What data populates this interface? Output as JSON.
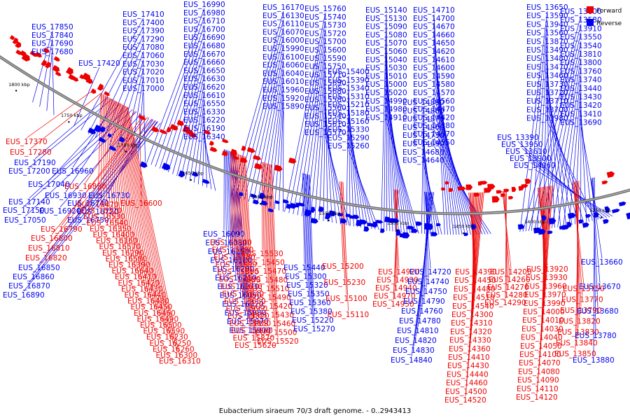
{
  "caption": "Eubacterium siraeum 70/3 draft genome. - 0..2943413",
  "legend": {
    "forward_label": "Forward",
    "reverse_label": "Reverse",
    "forward_color": "#ee0000",
    "reverse_color": "#0000ee"
  },
  "ticks": [
    "1800 kbp",
    "1750 kbp",
    "1700 kbp",
    "1650 kbp",
    "1600 kbp",
    "1550 kbp",
    "1500 kbp",
    "1450 kbp",
    "1400 kbp",
    "1350 kbp"
  ],
  "reverse_labels_upper": [
    "EUS_17850",
    "EUS_17840",
    "EUS_17690",
    "EUS_17680",
    "EUS_17420",
    "EUS_17410",
    "EUS_17400",
    "EUS_17390",
    "EUS_17290",
    "EUS_17080",
    "EUS_17060",
    "EUS_17030",
    "EUS_17020",
    "EUS_17010",
    "EUS_17000",
    "EUS_16990",
    "EUS_16980",
    "EUS_16710",
    "EUS_16700",
    "EUS_16690",
    "EUS_16680",
    "EUS_16670",
    "EUS_16660",
    "EUS_16650",
    "EUS_16630",
    "EUS_16620",
    "EUS_16610",
    "EUS_16550",
    "EUS_16330",
    "EUS_16220",
    "EUS_16190",
    "EUS_16340",
    "EUS_16170",
    "EUS_16130",
    "EUS_16110",
    "EUS_16070",
    "EUS_16000",
    "EUS_15990",
    "EUS_16100",
    "EUS_16060",
    "EUS_16040",
    "EUS_16010",
    "EUS_15960",
    "EUS_15920",
    "EUS_15890",
    "EUS_15760",
    "EUS_15740",
    "EUS_15730",
    "EUS_15720",
    "EUS_15700",
    "EUS_15600",
    "EUS_15590",
    "EUS_15750",
    "EUS_15710",
    "EUS_15690",
    "EUS_15680",
    "EUS_15580",
    "EUS_15560",
    "EUS_15540",
    "EUS_15610",
    "EUS_15570",
    "EUS_15400",
    "EUS_15390",
    "EUS_15340",
    "EUS_15310",
    "EUS_15210",
    "EUS_15180",
    "EUS_15160",
    "EUS_15330",
    "EUS_15290",
    "EUS_15260",
    "EUS_15140",
    "EUS_15130",
    "EUS_15090",
    "EUS_15080",
    "EUS_15070",
    "EUS_15060",
    "EUS_15040",
    "EUS_15030",
    "EUS_15010",
    "EUS_15000",
    "EUS_15020",
    "EUS_14990",
    "EUS_14980",
    "EUS_14910",
    "EUS_14890",
    "EUS_14880",
    "EUS_14870",
    "EUS_14800",
    "EUS_14730",
    "EUS_14690",
    "EUS_14680",
    "EUS_14640",
    "EUS_14710",
    "EUS_14700",
    "EUS_14670",
    "EUS_14660",
    "EUS_14650",
    "EUS_14620",
    "EUS_14610",
    "EUS_14600",
    "EUS_14590",
    "EUS_14580",
    "EUS_14570",
    "EUS_14560",
    "EUS_14470",
    "EUS_14420",
    "EUS_14380",
    "EUS_14370",
    "EUS_14350",
    "EUS_13650",
    "EUS_13600",
    "EUS_13590",
    "EUS_13580",
    "EUS_13940",
    "EUS_13910",
    "EUS_13560",
    "EUS_13550",
    "EUS_13870",
    "EUS_13540",
    "EUS_13490",
    "EUS_13810",
    "EUS_13480",
    "EUS_13800",
    "EUS_13470",
    "EUS_13760",
    "EUS_13460",
    "EUS_13740",
    "EUS_13730",
    "EUS_13440",
    "EUS_13720",
    "EUS_13430",
    "EUS_13710",
    "EUS_13420",
    "EUS_13700",
    "EUS_13410",
    "EUS_13980",
    "EUS_13690",
    "EUS_13390",
    "EUS_13950",
    "EUS_13610",
    "EUS_13900",
    "EUS_14060"
  ],
  "forward_labels_left": [
    "EUS_17370",
    "EUS_17280"
  ],
  "reverse_labels_left": [
    "EUS_17190",
    "EUS_17200",
    "EUS_16960",
    "EUS_17040",
    "EUS_16930",
    "EUS_17140",
    "EUS_17150",
    "EUS_17050",
    "EUS_16920",
    "EUS_16740",
    "EUS_16730",
    "EUS_16720",
    "EUS_16750"
  ],
  "forward_labels_left_mid": [
    "EUS_16830",
    "EUS_16600",
    "EUS_16790",
    "EUS_16800",
    "EUS_16810",
    "EUS_16820"
  ],
  "reverse_labels_left_lower": [
    "EUS_16850",
    "EUS_16860",
    "EUS_16870",
    "EUS_16890"
  ],
  "lower_labels": [
    {
      "t": "EUS_16470",
      "c": "f"
    },
    {
      "t": "EUS_16320",
      "c": "f"
    },
    {
      "t": "EUS_16530",
      "c": "f"
    },
    {
      "t": "EUS_16540",
      "c": "f"
    },
    {
      "t": "EUS_16350",
      "c": "f"
    },
    {
      "t": "EUS_16400",
      "c": "f"
    },
    {
      "t": "EUS_16160",
      "c": "f"
    },
    {
      "t": "EUS_16570",
      "c": "f"
    },
    {
      "t": "EUS_16290",
      "c": "f"
    },
    {
      "t": "EUS_16580",
      "c": "f"
    },
    {
      "t": "EUS_16390",
      "c": "f"
    },
    {
      "t": "EUS_16640",
      "c": "f"
    },
    {
      "t": "EUS_16410",
      "c": "f"
    },
    {
      "t": "EUS_16420",
      "c": "f"
    },
    {
      "t": "EUS_16430",
      "c": "f"
    },
    {
      "t": "EUS_16440",
      "c": "f"
    },
    {
      "t": "EUS_16480",
      "c": "f"
    },
    {
      "t": "EUS_16450",
      "c": "f"
    },
    {
      "t": "EUS_16460",
      "c": "f"
    },
    {
      "t": "EUS_16490",
      "c": "f"
    },
    {
      "t": "EUS_16500",
      "c": "f"
    },
    {
      "t": "EUS_16590",
      "c": "f"
    },
    {
      "t": "EUS_16230",
      "c": "f"
    },
    {
      "t": "EUS_16250",
      "c": "f"
    },
    {
      "t": "EUS_16260",
      "c": "f"
    },
    {
      "t": "EUS_16300",
      "c": "f"
    },
    {
      "t": "EUS_16310",
      "c": "f"
    },
    {
      "t": "EUS_16090",
      "c": "r"
    },
    {
      "t": "EUS_16080",
      "c": "r"
    },
    {
      "t": "EUS_16150",
      "c": "r"
    },
    {
      "t": "EUS_16180",
      "c": "r"
    },
    {
      "t": "EUS_16200",
      "c": "r"
    },
    {
      "t": "EUS_16210",
      "c": "r"
    },
    {
      "t": "EUS_16270",
      "c": "r"
    },
    {
      "t": "EUS_16050",
      "c": "r"
    },
    {
      "t": "EUS_16020",
      "c": "r"
    },
    {
      "t": "EUS_15980",
      "c": "r"
    },
    {
      "t": "EUS_15970",
      "c": "r"
    },
    {
      "t": "EUS_15900",
      "c": "r"
    },
    {
      "t": "EUS_15940",
      "c": "f"
    },
    {
      "t": "EUS_15790",
      "c": "f"
    },
    {
      "t": "EUS_15780",
      "c": "f"
    },
    {
      "t": "EUS_15800",
      "c": "f"
    },
    {
      "t": "EUS_15810",
      "c": "f"
    },
    {
      "t": "EUS_15880",
      "c": "f"
    },
    {
      "t": "EUS_15630",
      "c": "f"
    },
    {
      "t": "EUS_15640",
      "c": "f"
    },
    {
      "t": "EUS_15650",
      "c": "f"
    },
    {
      "t": "EUS_15660",
      "c": "f"
    },
    {
      "t": "EUS_15820",
      "c": "f"
    },
    {
      "t": "EUS_15850",
      "c": "f"
    },
    {
      "t": "EUS_15860",
      "c": "f"
    },
    {
      "t": "EUS_15870",
      "c": "f"
    },
    {
      "t": "EUS_15620",
      "c": "f"
    },
    {
      "t": "EUS_15530",
      "c": "f"
    },
    {
      "t": "EUS_15450",
      "c": "f"
    },
    {
      "t": "EUS_15470",
      "c": "f"
    },
    {
      "t": "EUS_15480",
      "c": "f"
    },
    {
      "t": "EUS_15510",
      "c": "f"
    },
    {
      "t": "EUS_15490",
      "c": "f"
    },
    {
      "t": "EUS_15420",
      "c": "f"
    },
    {
      "t": "EUS_15430",
      "c": "f"
    },
    {
      "t": "EUS_15460",
      "c": "f"
    },
    {
      "t": "EUS_15500",
      "c": "f"
    },
    {
      "t": "EUS_15520",
      "c": "f"
    },
    {
      "t": "EUS_15440",
      "c": "r"
    },
    {
      "t": "EUS_15300",
      "c": "r"
    },
    {
      "t": "EUS_15320",
      "c": "r"
    },
    {
      "t": "EUS_15350",
      "c": "r"
    },
    {
      "t": "EUS_15360",
      "c": "r"
    },
    {
      "t": "EUS_15380",
      "c": "r"
    },
    {
      "t": "EUS_15220",
      "c": "r"
    },
    {
      "t": "EUS_15270",
      "c": "r"
    },
    {
      "t": "EUS_15200",
      "c": "f"
    },
    {
      "t": "EUS_15230",
      "c": "f"
    },
    {
      "t": "EUS_15100",
      "c": "f"
    },
    {
      "t": "EUS_15110",
      "c": "f"
    },
    {
      "t": "EUS_14920",
      "c": "f"
    },
    {
      "t": "EUS_14930",
      "c": "f"
    },
    {
      "t": "EUS_14940",
      "c": "f"
    },
    {
      "t": "EUS_14970",
      "c": "f"
    },
    {
      "t": "EUS_14950",
      "c": "f"
    },
    {
      "t": "EUS_14720",
      "c": "r"
    },
    {
      "t": "EUS_14740",
      "c": "r"
    },
    {
      "t": "EUS_14750",
      "c": "r"
    },
    {
      "t": "EUS_14790",
      "c": "r"
    },
    {
      "t": "EUS_14760",
      "c": "r"
    },
    {
      "t": "EUS_14780",
      "c": "r"
    },
    {
      "t": "EUS_14810",
      "c": "r"
    },
    {
      "t": "EUS_14820",
      "c": "r"
    },
    {
      "t": "EUS_14830",
      "c": "r"
    },
    {
      "t": "EUS_14840",
      "c": "r"
    },
    {
      "t": "EUS_14390",
      "c": "f"
    },
    {
      "t": "EUS_14450",
      "c": "f"
    },
    {
      "t": "EUS_14480",
      "c": "f"
    },
    {
      "t": "EUS_14510",
      "c": "f"
    },
    {
      "t": "EUS_14540",
      "c": "f"
    },
    {
      "t": "EUS_14300",
      "c": "f"
    },
    {
      "t": "EUS_14310",
      "c": "f"
    },
    {
      "t": "EUS_14320",
      "c": "f"
    },
    {
      "t": "EUS_14330",
      "c": "f"
    },
    {
      "t": "EUS_14360",
      "c": "f"
    },
    {
      "t": "EUS_14410",
      "c": "f"
    },
    {
      "t": "EUS_14430",
      "c": "f"
    },
    {
      "t": "EUS_14440",
      "c": "f"
    },
    {
      "t": "EUS_14460",
      "c": "f"
    },
    {
      "t": "EUS_14500",
      "c": "f"
    },
    {
      "t": "EUS_14520",
      "c": "f"
    },
    {
      "t": "EUS_14200",
      "c": "f"
    },
    {
      "t": "EUS_14260",
      "c": "f"
    },
    {
      "t": "EUS_14270",
      "c": "f"
    },
    {
      "t": "EUS_14280",
      "c": "f"
    },
    {
      "t": "EUS_14290",
      "c": "f"
    },
    {
      "t": "EUS_13920",
      "c": "f"
    },
    {
      "t": "EUS_13930",
      "c": "f"
    },
    {
      "t": "EUS_13960",
      "c": "f"
    },
    {
      "t": "EUS_13970",
      "c": "f"
    },
    {
      "t": "EUS_13990",
      "c": "f"
    },
    {
      "t": "EUS_14000",
      "c": "f"
    },
    {
      "t": "EUS_14010",
      "c": "f"
    },
    {
      "t": "EUS_14030",
      "c": "f"
    },
    {
      "t": "EUS_14040",
      "c": "f"
    },
    {
      "t": "EUS_14050",
      "c": "f"
    },
    {
      "t": "EUS_14100",
      "c": "f"
    },
    {
      "t": "EUS_14070",
      "c": "f"
    },
    {
      "t": "EUS_14080",
      "c": "f"
    },
    {
      "t": "EUS_14090",
      "c": "f"
    },
    {
      "t": "EUS_14110",
      "c": "f"
    },
    {
      "t": "EUS_14120",
      "c": "f"
    },
    {
      "t": "EUS_13750",
      "c": "f"
    },
    {
      "t": "EUS_13770",
      "c": "f"
    },
    {
      "t": "EUS_13790",
      "c": "f"
    },
    {
      "t": "EUS_13820",
      "c": "f"
    },
    {
      "t": "EUS_13830",
      "c": "f"
    },
    {
      "t": "EUS_13840",
      "c": "f"
    },
    {
      "t": "EUS_13850",
      "c": "f"
    },
    {
      "t": "EUS_13660",
      "c": "r"
    },
    {
      "t": "EUS_13670",
      "c": "r"
    },
    {
      "t": "EUS_13680",
      "c": "r"
    },
    {
      "t": "EUS_13780",
      "c": "r"
    },
    {
      "t": "EUS_13880",
      "c": "r"
    }
  ]
}
